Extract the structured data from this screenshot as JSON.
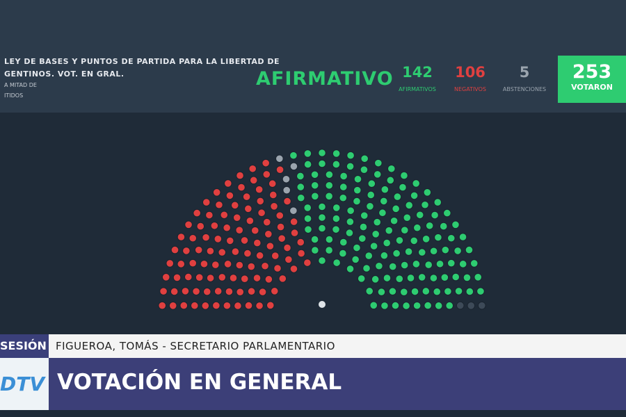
{
  "header": {
    "lines": [
      "LEY DE BASES Y PUNTOS DE PARTIDA PARA LA LIBERTAD DE",
      "GENTINOS. VOT. EN GRAL."
    ],
    "notes": [
      "A MITAD DE",
      "ITIDOS"
    ]
  },
  "result": "AFIRMATIVO",
  "counts": [
    {
      "value": 142,
      "label": "AFIRMATIVOS",
      "color": "#2ecc71"
    },
    {
      "value": 106,
      "label": "NEGATIVOS",
      "color": "#e04040"
    },
    {
      "value": 5,
      "label": "ABSTENCIONES",
      "color": "#9aa4ae"
    }
  ],
  "total": {
    "value": 253,
    "label": "VOTARON"
  },
  "lower_third": {
    "tag": "SESIÓN",
    "speaker": "FIGUEROA, TOMÁS - SECRETARIO PARLAMENTARIO",
    "headline": "VOTACIÓN EN GENERAL",
    "logo": "DTV"
  }
}
